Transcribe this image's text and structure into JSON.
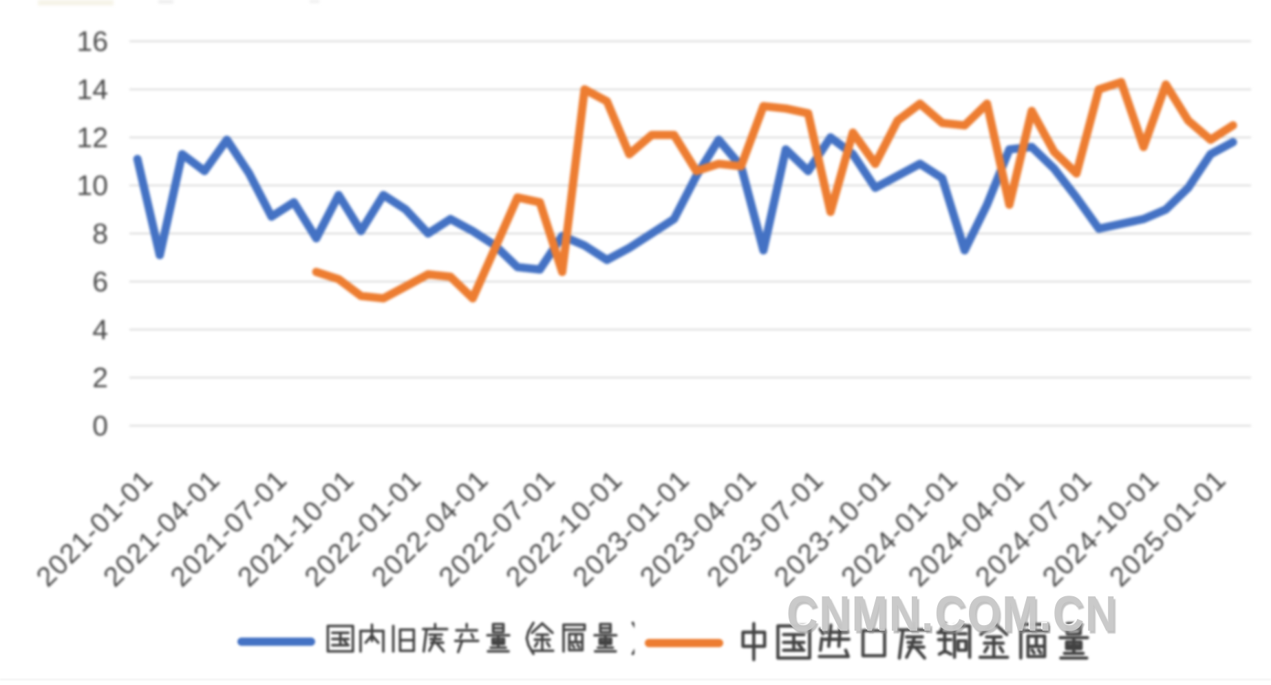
{
  "page": {
    "background": "#ffffff"
  },
  "watermark": {
    "text": "CNMN.COM.CN",
    "color": "#d2d2d2"
  },
  "legend": {
    "items": [
      {
        "label": "国内旧废产量(金属量)",
        "color": "#4472C4"
      },
      {
        "label": "中国进口废铜金属量",
        "color": "#ED7D31"
      }
    ]
  },
  "chart_data": {
    "type": "line",
    "title": "",
    "xlabel": "",
    "ylabel": "",
    "ylim": [
      0,
      16
    ],
    "y_ticks": [
      0,
      2,
      4,
      6,
      8,
      10,
      12,
      14,
      16
    ],
    "grid": "horizontal",
    "grid_color": "#d5d5d5",
    "axis_label_color": "#484848",
    "legend_position": "bottom",
    "x": [
      "2021-01-01",
      "2021-02-01",
      "2021-03-01",
      "2021-04-01",
      "2021-05-01",
      "2021-06-01",
      "2021-07-01",
      "2021-08-01",
      "2021-09-01",
      "2021-10-01",
      "2021-11-01",
      "2021-12-01",
      "2022-01-01",
      "2022-02-01",
      "2022-03-01",
      "2022-04-01",
      "2022-05-01",
      "2022-06-01",
      "2022-07-01",
      "2022-08-01",
      "2022-09-01",
      "2022-10-01",
      "2022-11-01",
      "2022-12-01",
      "2023-01-01",
      "2023-02-01",
      "2023-03-01",
      "2023-04-01",
      "2023-05-01",
      "2023-06-01",
      "2023-07-01",
      "2023-08-01",
      "2023-09-01",
      "2023-10-01",
      "2023-11-01",
      "2023-12-01",
      "2024-01-01",
      "2024-02-01",
      "2024-03-01",
      "2024-04-01",
      "2024-05-01",
      "2024-06-01",
      "2024-07-01",
      "2024-08-01",
      "2024-09-01",
      "2024-10-01",
      "2024-11-01",
      "2024-12-01",
      "2025-01-01",
      "2025-02-01"
    ],
    "x_tick_labels": [
      "2021-01-01",
      "2021-04-01",
      "2021-07-01",
      "2021-10-01",
      "2022-01-01",
      "2022-04-01",
      "2022-07-01",
      "2022-10-01",
      "2023-01-01",
      "2023-04-01",
      "2023-07-01",
      "2023-10-01",
      "2024-01-01",
      "2024-04-01",
      "2024-07-01",
      "2024-10-01",
      "2025-01-01"
    ],
    "x_tick_every": 3,
    "series": [
      {
        "name": "国内旧废产量(金属量)",
        "color": "#4472C4",
        "values": [
          11.1,
          7.1,
          11.3,
          10.6,
          11.9,
          10.5,
          8.7,
          9.3,
          7.8,
          9.6,
          8.1,
          9.6,
          9.0,
          8.0,
          8.6,
          8.1,
          7.5,
          6.6,
          6.5,
          7.9,
          7.5,
          6.9,
          7.4,
          8.0,
          8.6,
          10.4,
          11.9,
          10.8,
          7.3,
          11.5,
          10.6,
          12.0,
          11.3,
          9.9,
          10.4,
          10.9,
          10.3,
          7.3,
          9.2,
          11.5,
          11.6,
          10.7,
          9.5,
          8.2,
          8.4,
          8.6,
          9.0,
          9.9,
          11.3,
          11.8
        ]
      },
      {
        "name": "中国进口废铜金属量",
        "color": "#ED7D31",
        "values": [
          null,
          null,
          null,
          null,
          null,
          null,
          null,
          null,
          6.4,
          6.1,
          5.4,
          5.3,
          5.8,
          6.3,
          6.2,
          5.3,
          7.4,
          9.5,
          9.3,
          6.4,
          14.0,
          13.5,
          11.3,
          12.1,
          12.1,
          10.6,
          10.9,
          10.8,
          13.3,
          13.2,
          13.0,
          8.9,
          12.2,
          10.9,
          12.7,
          13.4,
          12.6,
          12.5,
          13.4,
          9.2,
          13.1,
          11.4,
          10.5,
          14.0,
          14.3,
          11.6,
          14.2,
          12.7,
          11.9,
          12.5
        ]
      }
    ]
  }
}
